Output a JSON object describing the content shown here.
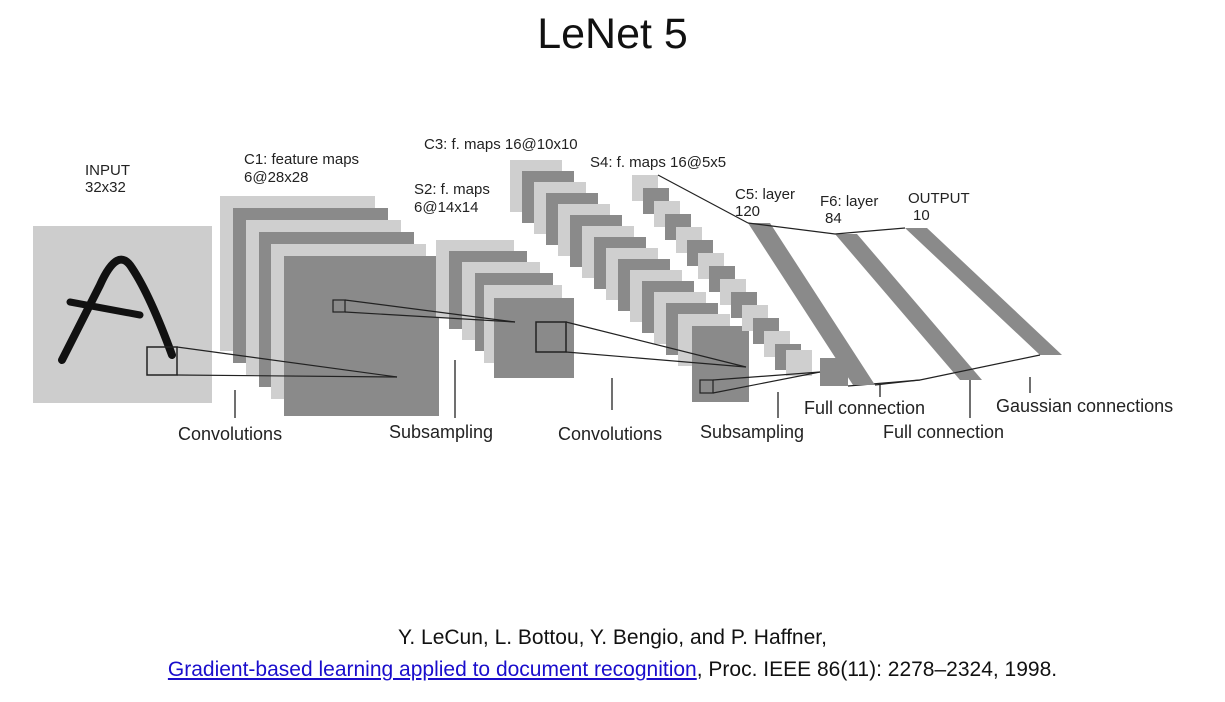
{
  "title": "LeNet 5",
  "diagram": {
    "input": {
      "line1": "INPUT",
      "line2": "32x32",
      "glyph": "A"
    },
    "c1": {
      "line1": "C1: feature maps",
      "line2": "6@28x28"
    },
    "s2": {
      "line1": "S2: f. maps",
      "line2": "6@14x14"
    },
    "c3": {
      "line1": "C3: f. maps 16@10x10"
    },
    "s4": {
      "line1": "S4: f. maps 16@5x5"
    },
    "c5": {
      "line1": "C5: layer",
      "line2": "120"
    },
    "f6": {
      "line1": "F6: layer",
      "line2": "84"
    },
    "output": {
      "line1": "OUTPUT",
      "line2": "10"
    },
    "operations": {
      "conv1": "Convolutions",
      "sub1": "Subsampling",
      "conv2": "Convolutions",
      "sub2": "Subsampling",
      "full1": "Full connection",
      "full2": "Full connection",
      "gauss": "Gaussian connections"
    },
    "colors": {
      "light_map": "#cfcfcf",
      "dark_map": "#8a8a8a",
      "line": "#222222",
      "input_bg": "#cdcdcd"
    }
  },
  "citation": {
    "authors": "Y. LeCun, L. Bottou, Y. Bengio, and P. Haffner,",
    "link_text": "Gradient-based learning applied to document recognition",
    "rest": ", Proc. IEEE 86(11): 2278–2324, 1998.",
    "link_color": "#1a0dcc"
  }
}
